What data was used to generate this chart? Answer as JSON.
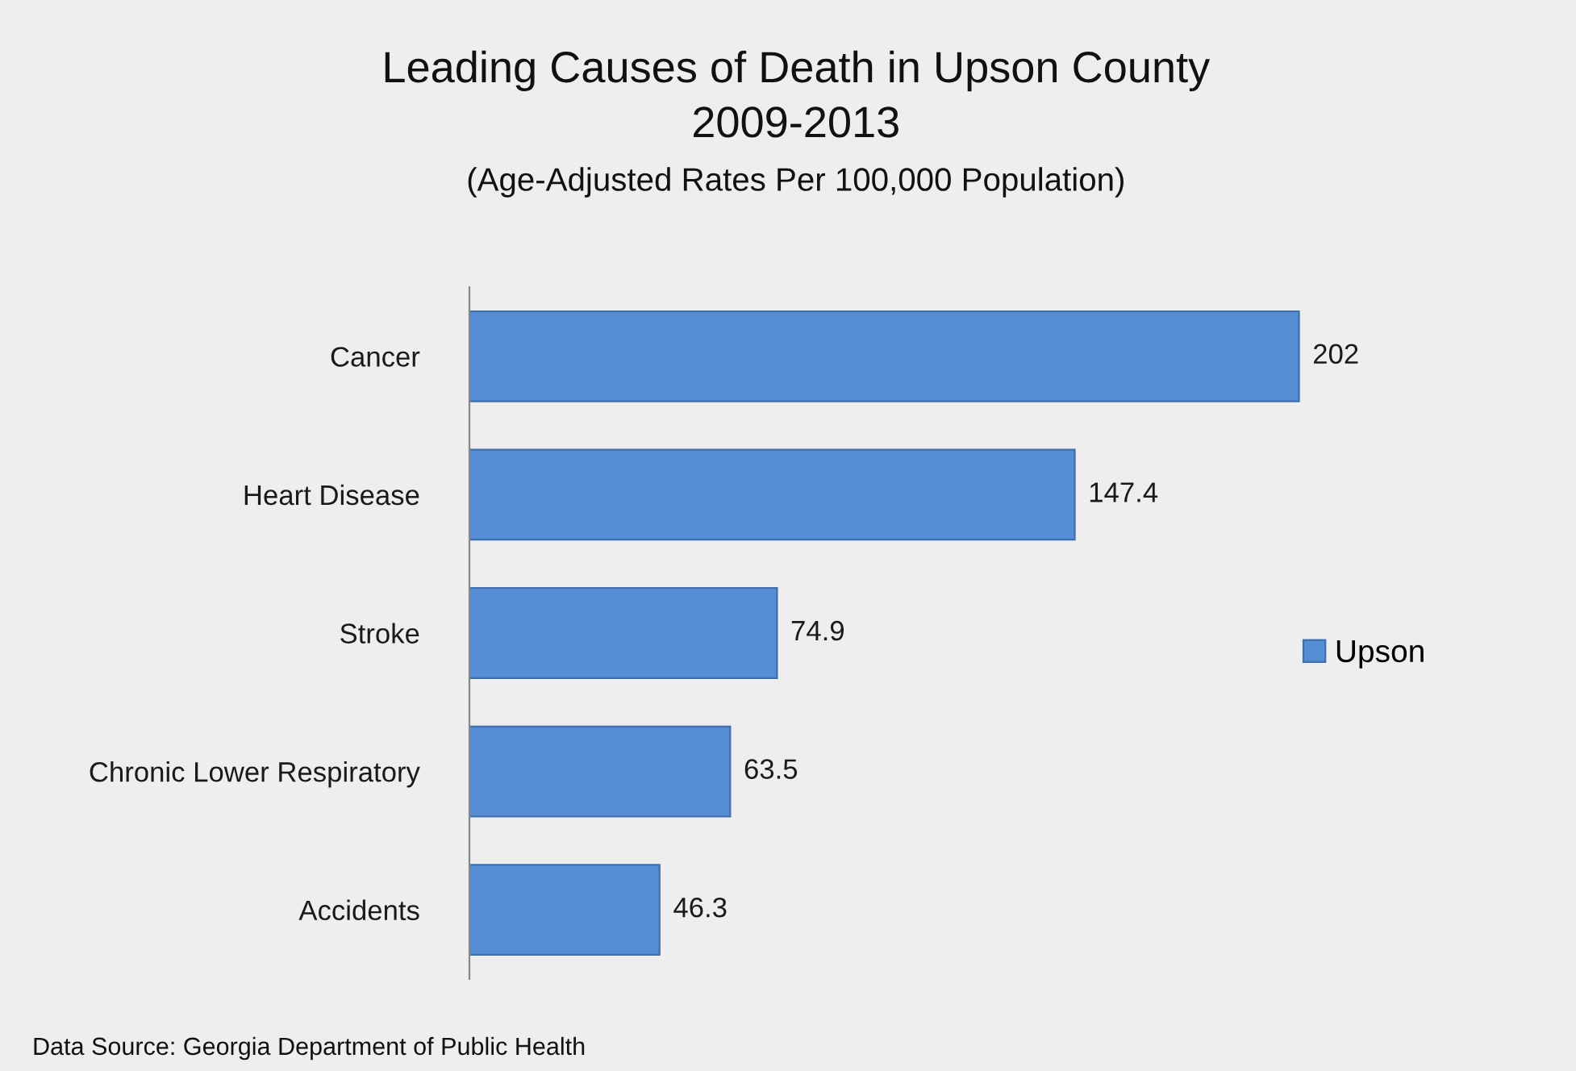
{
  "chart_data": {
    "type": "bar",
    "orientation": "horizontal",
    "title": "Leading Causes of Death in Upson County\n2009-2013",
    "subtitle": "(Age-Adjusted Rates Per 100,000 Population)",
    "categories": [
      "Cancer",
      "Heart Disease",
      "Stroke",
      "Chronic Lower Respiratory",
      "Accidents"
    ],
    "series": [
      {
        "name": "Upson",
        "color": "#558ed5",
        "values": [
          202,
          147.4,
          74.9,
          63.5,
          46.3
        ]
      }
    ],
    "tick_labels": "y",
    "data_labels": true,
    "grid": false,
    "legend": "right",
    "annotations": [
      "Data Source: Georgia Department of Public Health"
    ]
  }
}
